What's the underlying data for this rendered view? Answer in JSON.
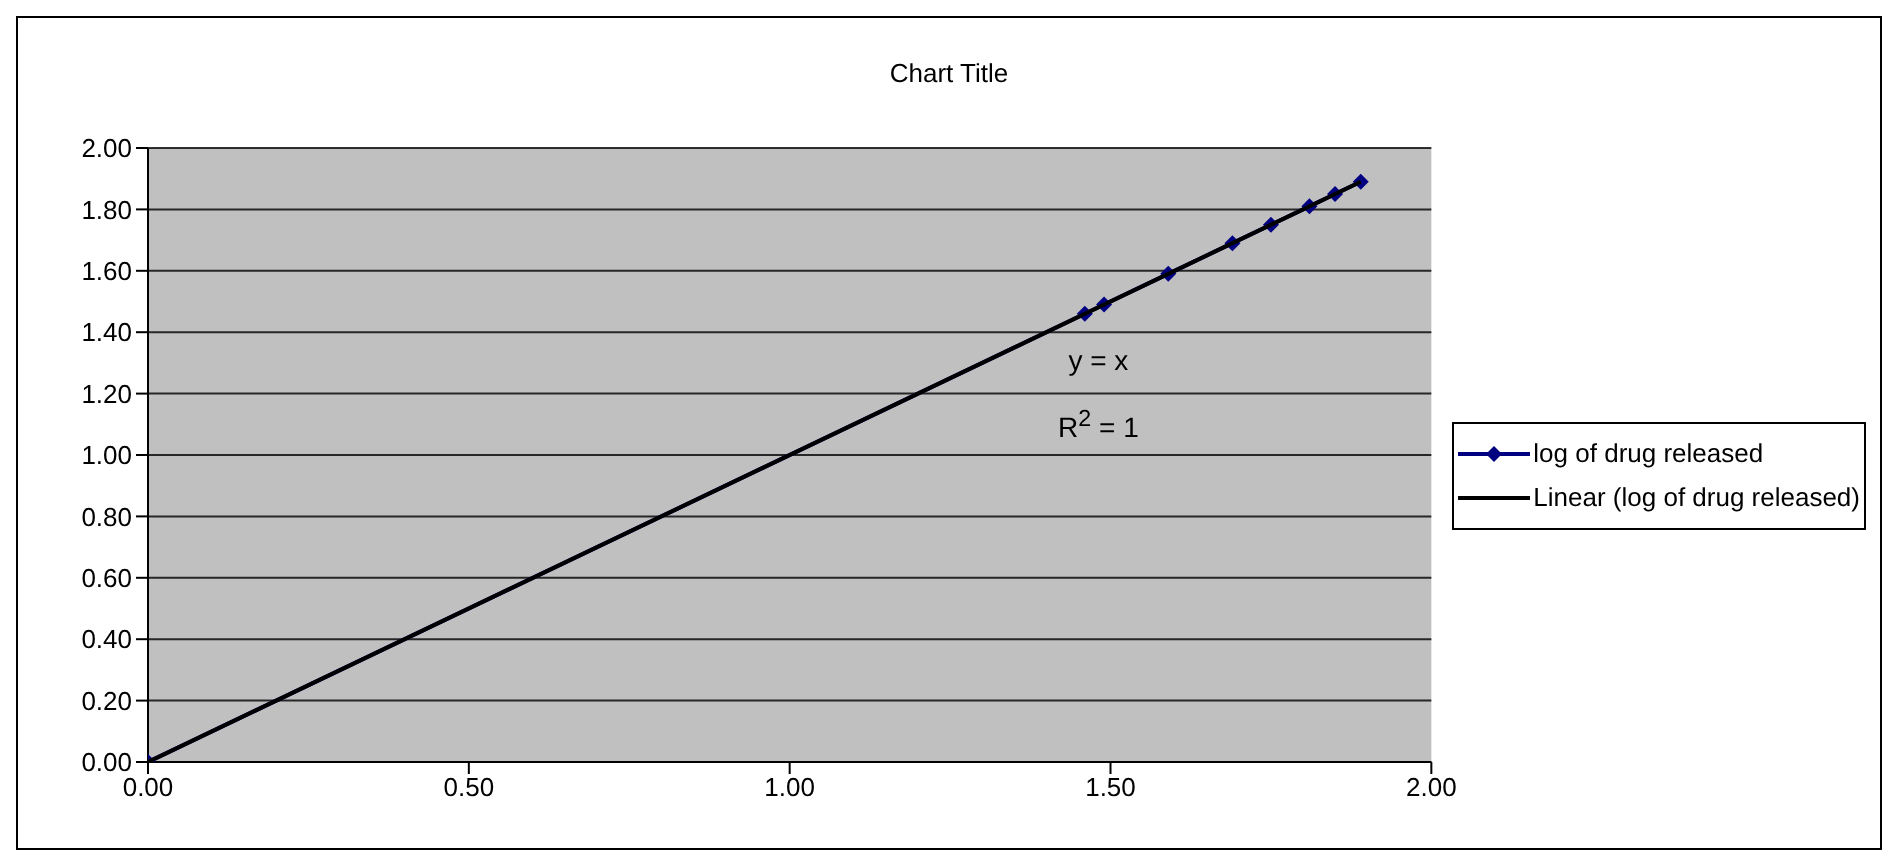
{
  "chart_data": {
    "type": "scatter",
    "title": "Chart Title",
    "annotations": [
      "y = x",
      "R$^{2}$ = 1"
    ],
    "series": [
      {
        "name": "log of drug released",
        "type": "line",
        "color": "#000080",
        "marker": "diamond",
        "x": [
          0,
          1.46,
          1.49,
          1.59,
          1.69,
          1.75,
          1.81,
          1.85,
          1.89
        ],
        "values": [
          0,
          1.46,
          1.49,
          1.59,
          1.69,
          1.75,
          1.81,
          1.85,
          1.89
        ]
      },
      {
        "name": "Linear (log of drug released)",
        "type": "line",
        "color": "#000000",
        "marker": "none",
        "x": [
          0,
          1.89
        ],
        "values": [
          0,
          1.89
        ]
      }
    ],
    "xlim": [
      0,
      2
    ],
    "ylim": [
      0,
      2
    ],
    "xticks": [
      {
        "value": 0,
        "label": "0.00"
      },
      {
        "value": 0.5,
        "label": "0.50"
      },
      {
        "value": 1,
        "label": "1.00"
      },
      {
        "value": 1.5,
        "label": "1.50"
      },
      {
        "value": 2,
        "label": "2.00"
      }
    ],
    "yticks": [
      {
        "value": 0,
        "label": "0.00"
      },
      {
        "value": 0.2,
        "label": "0.20"
      },
      {
        "value": 0.4,
        "label": "0.40"
      },
      {
        "value": 0.6,
        "label": "0.60"
      },
      {
        "value": 0.8,
        "label": "0.80"
      },
      {
        "value": 1,
        "label": "1.00"
      },
      {
        "value": 1.2,
        "label": "1.20"
      },
      {
        "value": 1.4,
        "label": "1.40"
      },
      {
        "value": 1.6,
        "label": "1.60"
      },
      {
        "value": 1.8,
        "label": "1.80"
      },
      {
        "value": 2,
        "label": "2.00"
      }
    ],
    "grid": "y",
    "legend": "right",
    "line_style": "solid"
  }
}
